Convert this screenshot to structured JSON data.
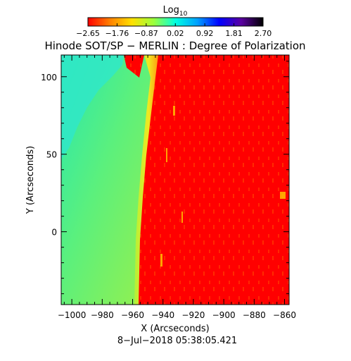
{
  "chart_data": {
    "type": "heatmap",
    "title": "Hinode SOT/SP − MERLIN : Degree of Polarization",
    "colorbar": {
      "label": "Log",
      "label_subscript": "10",
      "range": [
        -2.65,
        2.7
      ],
      "tick_labels": [
        "−2.65",
        "−1.76",
        "−0.87",
        "0.02",
        "0.92",
        "1.81",
        "2.70"
      ],
      "colormap": [
        "#ff0000",
        "#ff8000",
        "#ffe000",
        "#9cff3c",
        "#00ffe0",
        "#00a0ff",
        "#0000ff",
        "#5a00a0",
        "#000000"
      ]
    },
    "xlabel": "X (Arcseconds)",
    "ylabel": "Y (Arcseconds)",
    "xlim": [
      -1007,
      -857
    ],
    "ylim": [
      -47,
      114
    ],
    "x_ticks": [
      -1000,
      -980,
      -960,
      -940,
      -920,
      -900,
      -880,
      -860
    ],
    "x_tick_labels": [
      "−1000",
      "−980",
      "−960",
      "−940",
      "−920",
      "−900",
      "−880",
      "−860"
    ],
    "y_ticks": [
      0,
      50,
      100
    ],
    "y_tick_labels": [
      "0",
      "50",
      "100"
    ],
    "regions": [
      {
        "name": "off-limb sky",
        "color": "#7cf05a"
      },
      {
        "name": "limb band",
        "color": "#e8e020"
      },
      {
        "name": "solar disk",
        "color": "#ff0000"
      }
    ],
    "grid": false,
    "legend": "colorbar-top"
  },
  "timestamp": "8−Jul−2018 05:38:05.421"
}
